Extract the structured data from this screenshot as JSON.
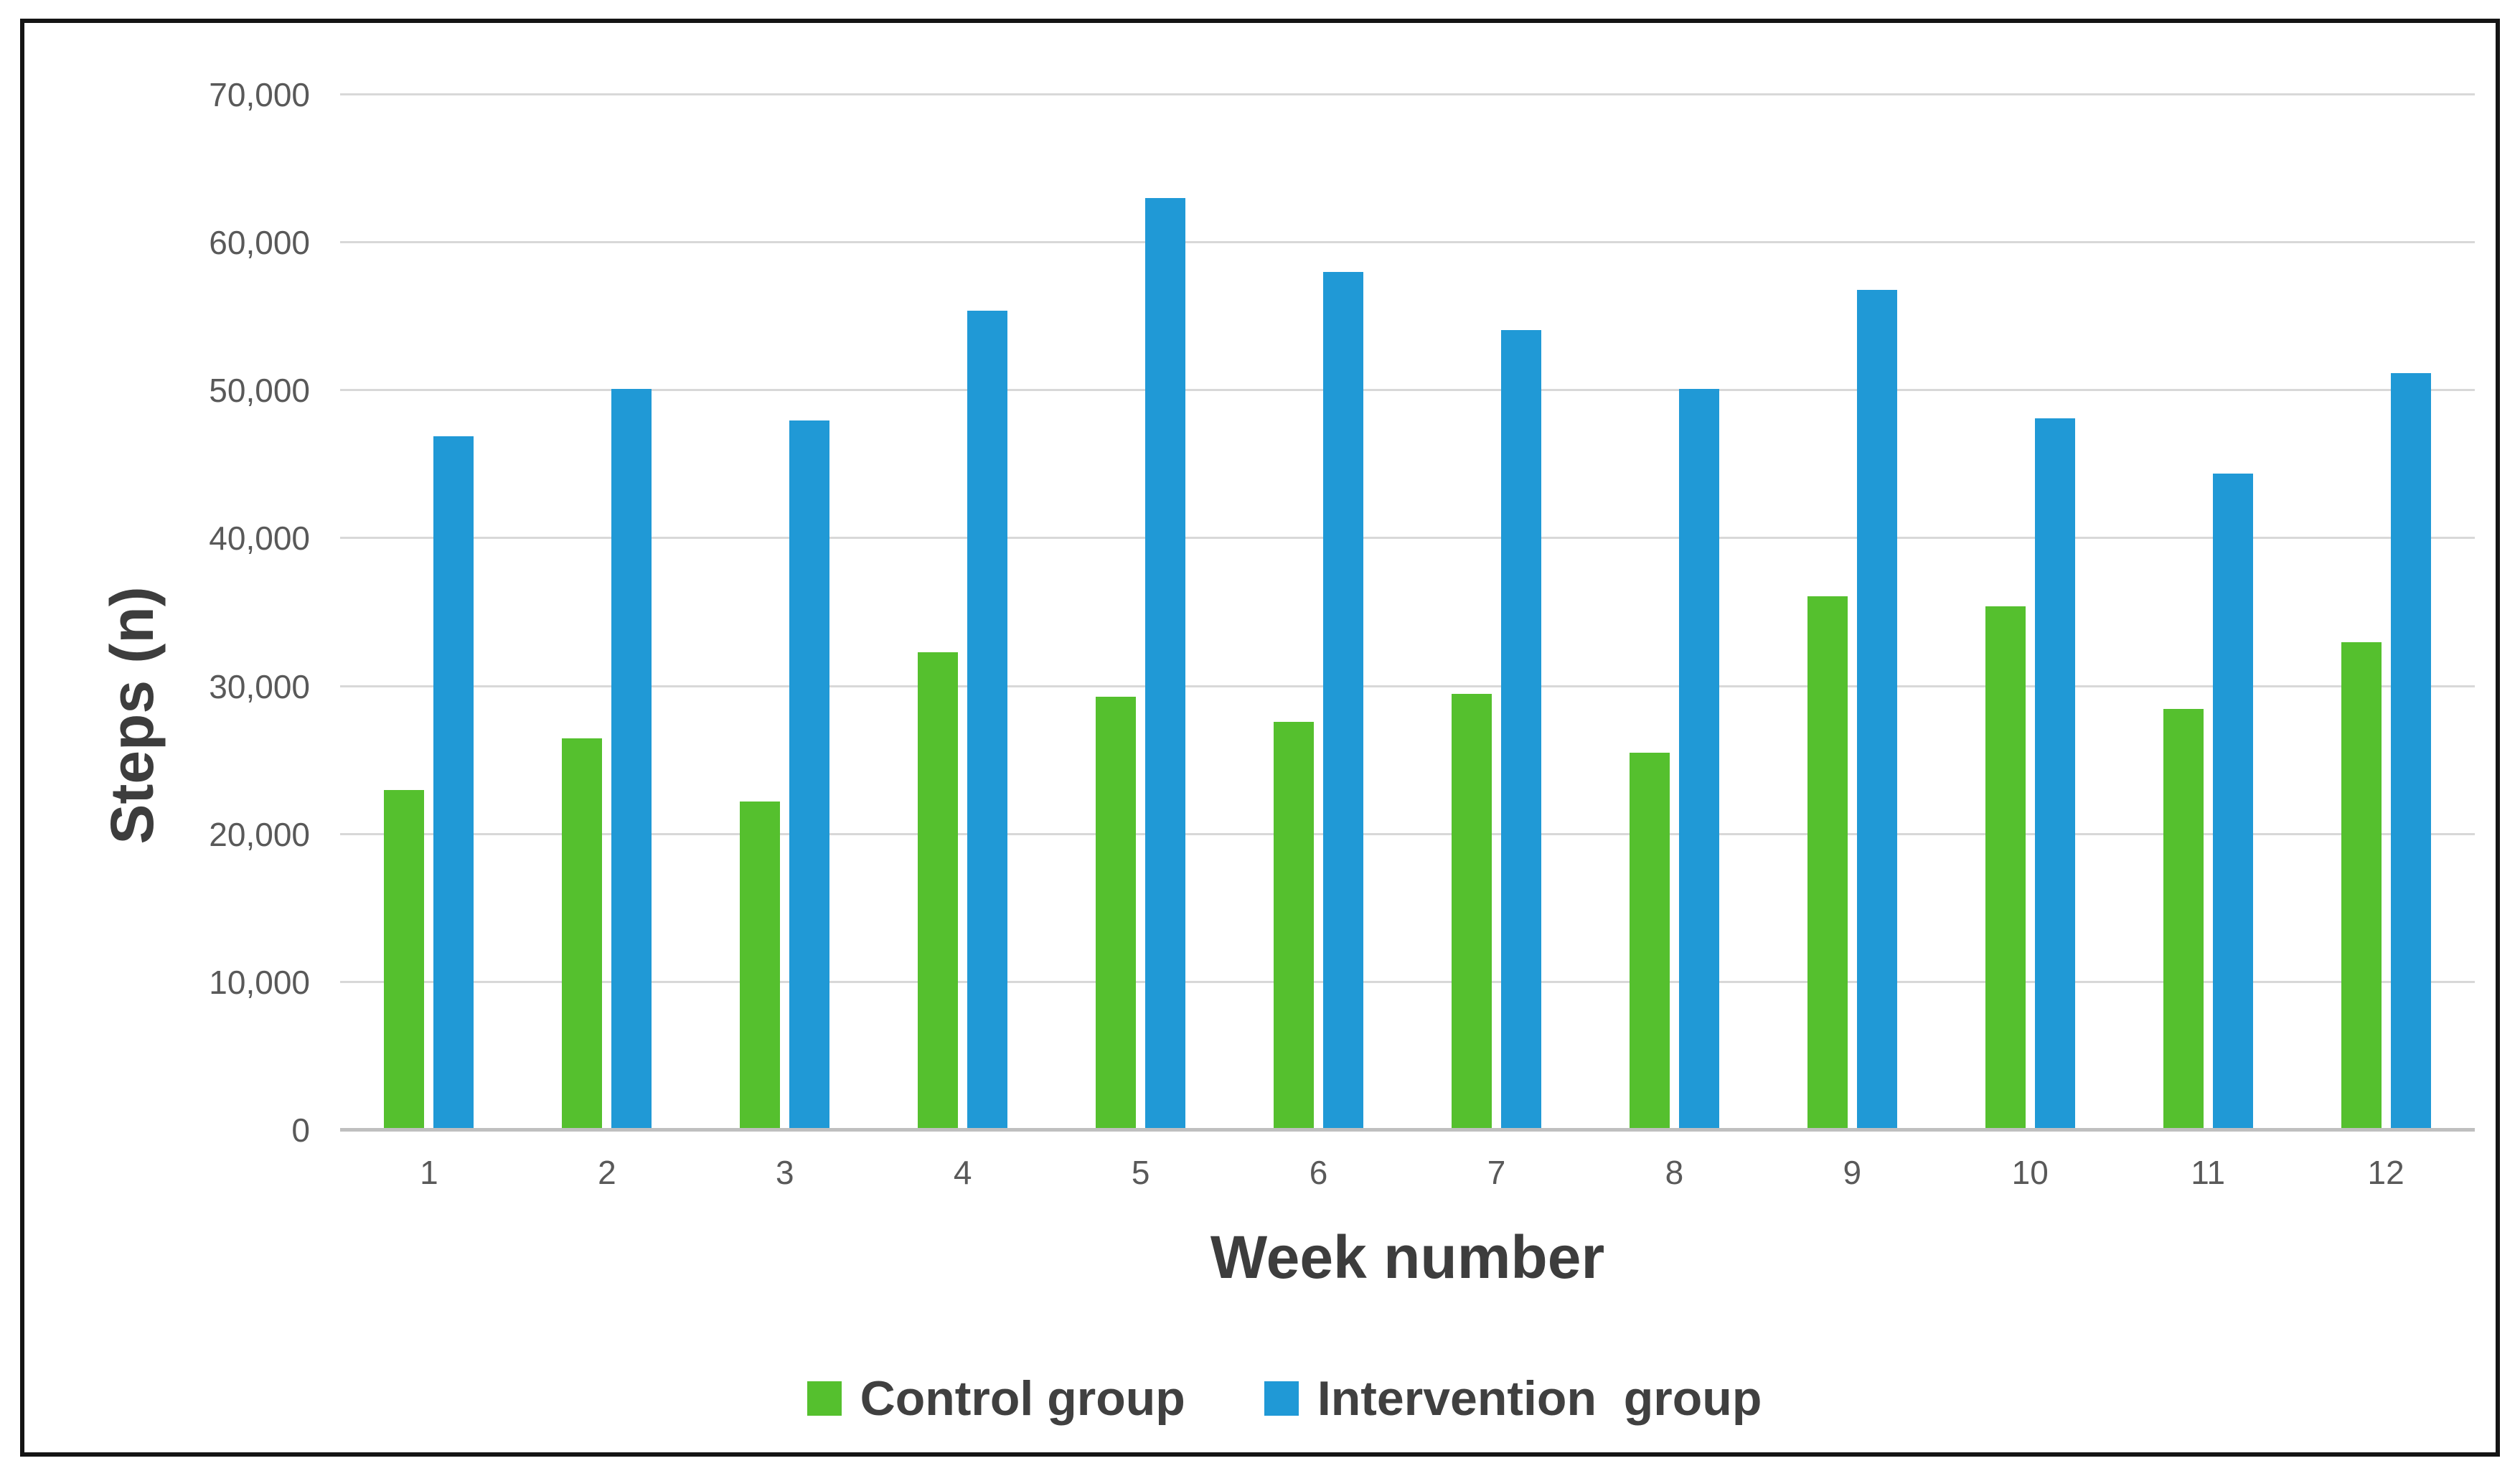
{
  "chart_data": {
    "type": "bar",
    "title": "",
    "categories": [
      "1",
      "2",
      "3",
      "4",
      "5",
      "6",
      "7",
      "8",
      "9",
      "10",
      "11",
      "12"
    ],
    "series": [
      {
        "name": "Control group",
        "color": "#55c02e",
        "values": [
          23000,
          26500,
          22200,
          32300,
          29300,
          27600,
          29500,
          25500,
          36100,
          35400,
          28500,
          33000
        ]
      },
      {
        "name": "Intervention  group",
        "color": "#2099d6",
        "values": [
          46900,
          50100,
          48000,
          55400,
          63000,
          58000,
          54100,
          50100,
          56800,
          48100,
          44400,
          51200
        ]
      }
    ],
    "xlabel": "Week number",
    "ylabel": "Steps (n)",
    "ylim": [
      0,
      70000
    ],
    "ytick_step": 10000,
    "ytick_labels": [
      "0",
      "10,000",
      "20,000",
      "30,000",
      "40,000",
      "50,000",
      "60,000",
      "70,000"
    ],
    "grid": true,
    "legend_position": "bottom",
    "gridline_color": "#d8d8d8",
    "axisline_color": "#bfbfbf"
  }
}
